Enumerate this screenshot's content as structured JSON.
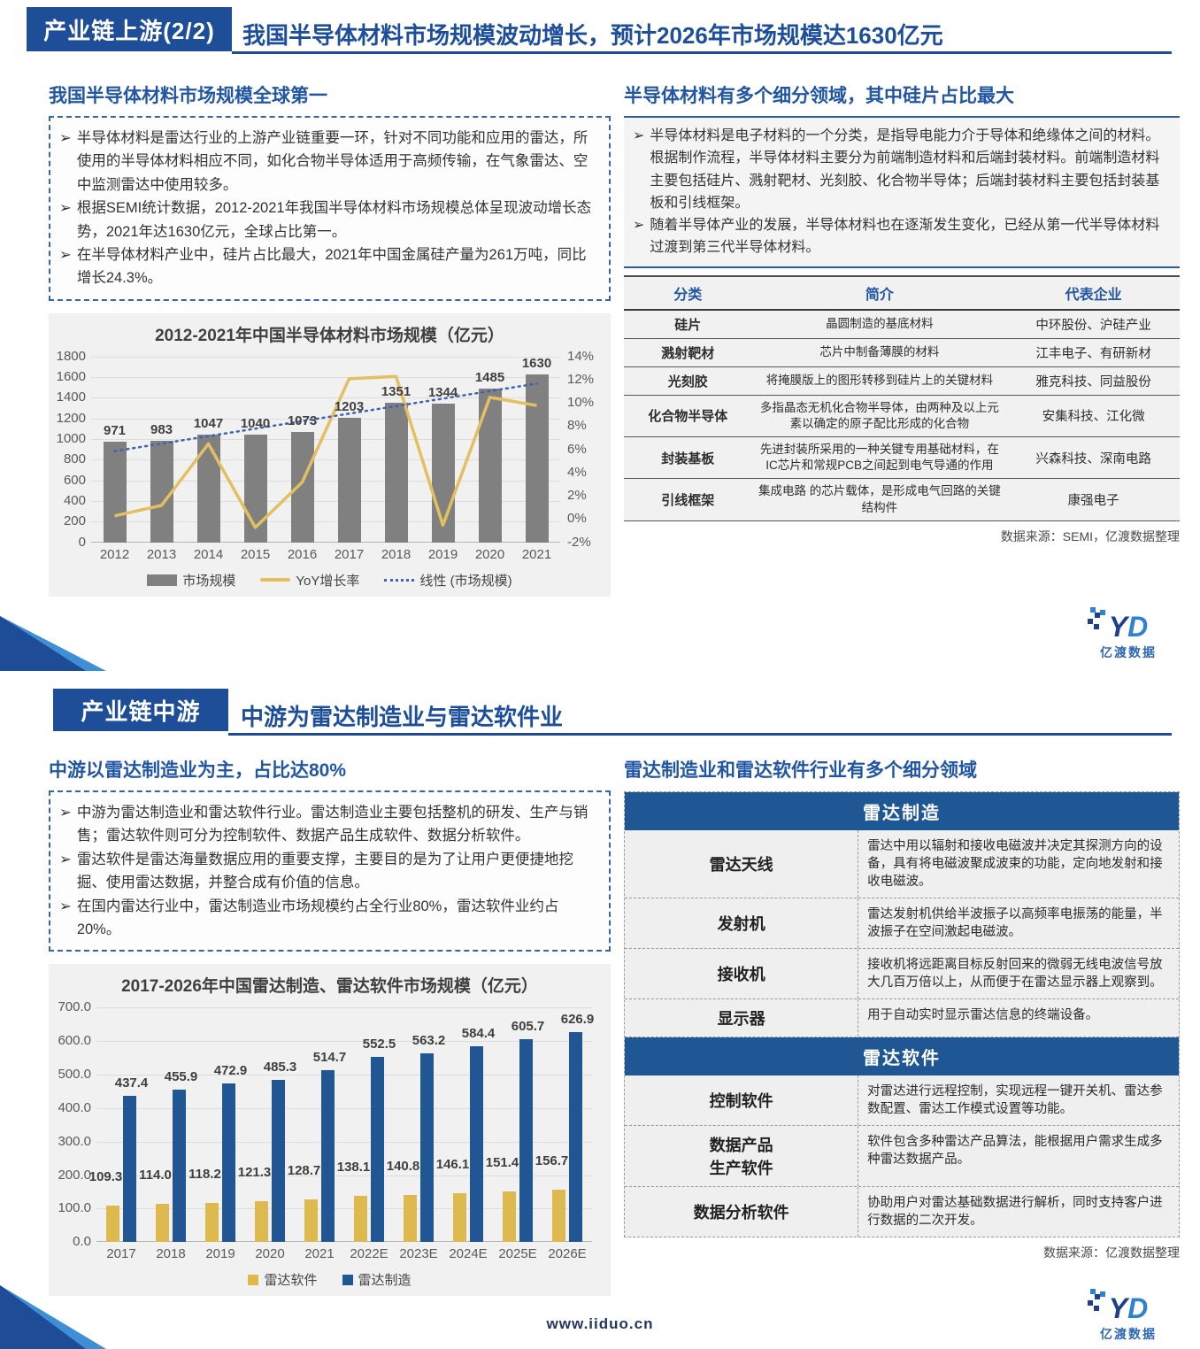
{
  "slide1": {
    "badge": "产业链上游(2/2)",
    "title": "我国半导体材料市场规模波动增长，预计2026年市场规模达1630亿元",
    "left": {
      "heading": "我国半导体材料市场规模全球第一",
      "bullets": [
        "半导体材料是雷达行业的上游产业链重要一环，针对不同功能和应用的雷达，所使用的半导体材料相应不同，如化合物半导体适用于高频传输，在气象雷达、空中监测雷达中使用较多。",
        "根据SEMI统计数据，2012-2021年我国半导体材料市场规模总体呈现波动增长态势，2021年达1630亿元，全球占比第一。",
        "在半导体材料产业中，硅片占比最大，2021年中国金属硅产量为261万吨，同比增长24.3%。"
      ]
    },
    "right": {
      "heading": "半导体材料有多个细分领域，其中硅片占比最大",
      "bullets": [
        "半导体材料是电子材料的一个分类，是指导电能力介于导体和绝缘体之间的材料。根据制作流程，半导体材料主要分为前端制造材料和后端封装材料。前端制造材料主要包括硅片、溅射靶材、光刻胶、化合物半导体；后端封装材料主要包括封装基板和引线框架。",
        "随着半导体产业的发展，半导体材料也在逐渐发生变化，已经从第一代半导体材料过渡到第三代半导体材料。"
      ],
      "table": {
        "headers": [
          "分类",
          "简介",
          "代表企业"
        ],
        "rows": [
          [
            "硅片",
            "晶圆制造的基底材料",
            "中环股份、沪硅产业"
          ],
          [
            "溅射靶材",
            "芯片中制备薄膜的材料",
            "江丰电子、有研新材"
          ],
          [
            "光刻胶",
            "将掩膜版上的图形转移到硅片上的关键材料",
            "雅克科技、同益股份"
          ],
          [
            "化合物半导体",
            "多指晶态无机化合物半导体，由两种及以上元素以确定的原子配比形成的化合物",
            "安集科技、江化微"
          ],
          [
            "封装基板",
            "先进封装所采用的一种关键专用基础材料，在IC芯片和常规PCB之间起到电气导通的作用",
            "兴森科技、深南电路"
          ],
          [
            "引线框架",
            "集成电路 的芯片载体，是形成电气回路的关键结构件",
            "康强电子"
          ]
        ]
      },
      "source": "数据来源：SEMI，亿渡数据整理"
    }
  },
  "slide2": {
    "badge": "产业链中游",
    "title": "中游为雷达制造业与雷达软件业",
    "left": {
      "heading": "中游以雷达制造业为主，占比达80%",
      "bullets": [
        "中游为雷达制造业和雷达软件行业。雷达制造业主要包括整机的研发、生产与销售；雷达软件则可分为控制软件、数据产品生成软件、数据分析软件。",
        "雷达软件是雷达海量数据应用的重要支撑，主要目的是为了让用户更便捷地挖掘、使用雷达数据，并整合成有价值的信息。",
        "在国内雷达行业中，雷达制造业市场规模约占全行业80%，雷达软件业约占20%。"
      ]
    },
    "right": {
      "heading": "雷达制造业和雷达软件行业有多个细分领域",
      "table": {
        "sections": [
          {
            "header": "雷达制造",
            "rows": [
              [
                "雷达天线",
                "雷达中用以辐射和接收电磁波并决定其探测方向的设备，具有将电磁波聚成波束的功能，定向地发射和接收电磁波。"
              ],
              [
                "发射机",
                "雷达发射机供给半波振子以高频率电振荡的能量，半波振子在空间激起电磁波。"
              ],
              [
                "接收机",
                "接收机将远距离目标反射回来的微弱无线电波信号放大几百万倍以上，从而便于在雷达显示器上观察到。"
              ],
              [
                "显示器",
                "用于自动实时显示雷达信息的终端设备。"
              ]
            ]
          },
          {
            "header": "雷达软件",
            "rows": [
              [
                "控制软件",
                "对雷达进行远程控制，实现远程一键开关机、雷达参数配置、雷达工作模式设置等功能。"
              ],
              [
                "数据产品\n生产软件",
                "软件包含多种雷达产品算法，能根据用户需求生成多种雷达数据产品。"
              ],
              [
                "数据分析软件",
                "协助用户对雷达基础数据进行解析，同时支持客户进行数据的二次开发。"
              ]
            ]
          }
        ]
      },
      "source": "数据来源：亿渡数据整理"
    }
  },
  "footer": {
    "url": "www.iiduo.cn"
  },
  "logo": {
    "mark_y": "Y",
    "mark_d": "D",
    "label": "亿渡数据"
  },
  "colors": {
    "navy": "#1f4e99",
    "heading_blue": "#2156a4",
    "bar_gray": "#808080",
    "gold": "#e2c061",
    "trend_blue": "#3f63ad",
    "bar_blue": "#1f5693",
    "section_header_bg": "#1f5795"
  },
  "chart_data": [
    {
      "type": "bar+line",
      "title": "2012-2021年中国半导体材料市场规模（亿元）",
      "categories": [
        "2012",
        "2013",
        "2014",
        "2015",
        "2016",
        "2017",
        "2018",
        "2019",
        "2020",
        "2021"
      ],
      "bar_series": {
        "name": "市场规模",
        "color": "#808080",
        "values": [
          971,
          983,
          1047,
          1040,
          1073,
          1203,
          1351,
          1344,
          1485,
          1630
        ]
      },
      "line_series": {
        "name": "YoY增长率",
        "color": "#e2c061",
        "axis": "right",
        "values_pct": [
          0.3,
          1.2,
          6.5,
          -0.7,
          3.2,
          12.1,
          12.3,
          -0.5,
          10.5,
          9.8
        ]
      },
      "trend": {
        "name": "线性 (市场规模)",
        "color": "#3f63ad",
        "style": "dotted"
      },
      "left_axis": {
        "min": 0,
        "max": 1800,
        "step": 200
      },
      "right_axis": {
        "min": -2,
        "max": 14,
        "step": 2,
        "suffix": "%"
      },
      "grid": true,
      "legend_position": "bottom"
    },
    {
      "type": "grouped-bar",
      "title": "2017-2026年中国雷达制造、雷达软件市场规模（亿元）",
      "categories": [
        "2017",
        "2018",
        "2019",
        "2020",
        "2021",
        "2022E",
        "2023E",
        "2024E",
        "2025E",
        "2026E"
      ],
      "series": [
        {
          "name": "雷达软件",
          "color": "#ddb94e",
          "values": [
            109.3,
            114.0,
            118.2,
            121.3,
            128.7,
            138.1,
            140.8,
            146.1,
            151.4,
            156.7
          ]
        },
        {
          "name": "雷达制造",
          "color": "#1f5693",
          "values": [
            437.4,
            455.9,
            472.9,
            485.3,
            514.7,
            552.5,
            563.2,
            584.4,
            605.7,
            626.9
          ]
        }
      ],
      "y_axis": {
        "min": 0,
        "max": 700,
        "step": 100,
        "decimals": 1
      },
      "grid": true,
      "legend_position": "bottom"
    }
  ]
}
